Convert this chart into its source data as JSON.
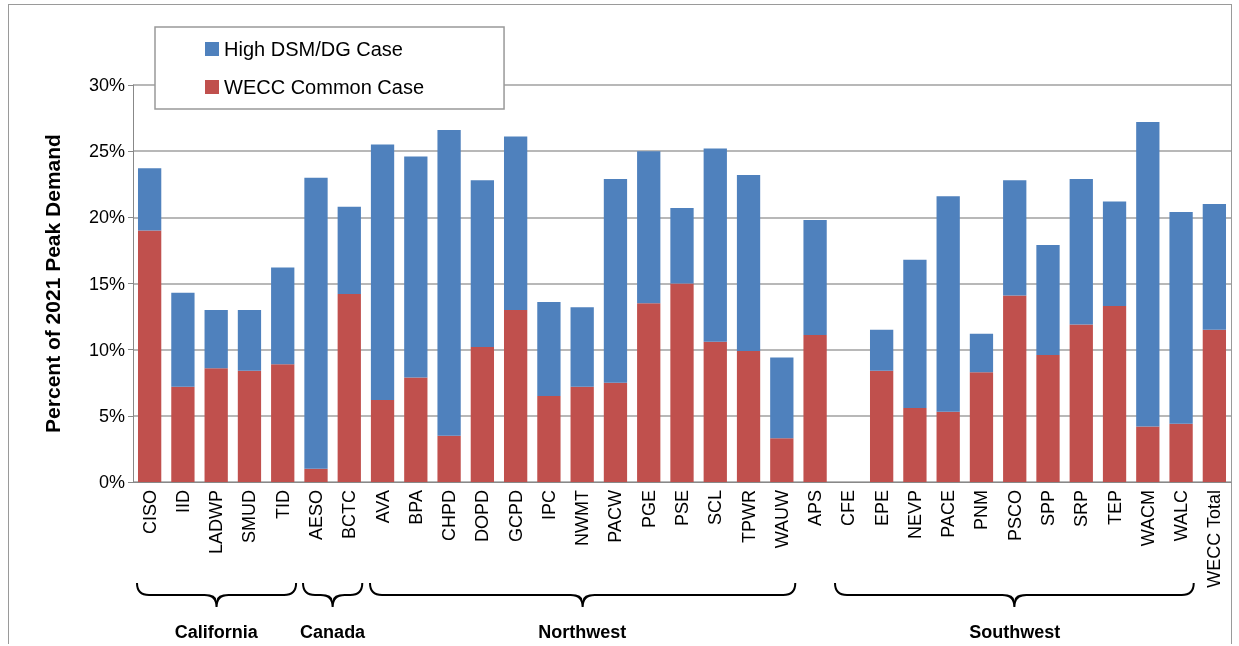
{
  "chart_data": {
    "type": "bar",
    "stacked": true,
    "ylabel": "Percent of 2021 Peak Demand",
    "categories": [
      "CISO",
      "IID",
      "LADWP",
      "SMUD",
      "TID",
      "AESO",
      "BCTC",
      "AVA",
      "BPA",
      "CHPD",
      "DOPD",
      "GCPD",
      "IPC",
      "NWMT",
      "PACW",
      "PGE",
      "PSE",
      "SCL",
      "TPWR",
      "WAUW",
      "APS",
      "CFE",
      "EPE",
      "NEVP",
      "PACE",
      "PNM",
      "PSCO",
      "SPP",
      "SRP",
      "TEP",
      "WACM",
      "WALC",
      "WECC Total"
    ],
    "series": [
      {
        "name": "WECC Common Case",
        "color": "#c0504d",
        "values": [
          19.0,
          7.2,
          8.6,
          8.4,
          8.9,
          1.0,
          14.2,
          6.2,
          7.9,
          3.5,
          10.2,
          13.0,
          6.5,
          7.2,
          7.5,
          13.5,
          15.0,
          10.6,
          9.9,
          3.3,
          11.1,
          null,
          8.4,
          5.6,
          5.3,
          8.3,
          14.1,
          9.6,
          11.9,
          13.3,
          4.2,
          4.4,
          11.5
        ]
      },
      {
        "name": "High DSM/DG Case",
        "color": "#4f81bd",
        "values": [
          4.7,
          7.1,
          4.4,
          4.6,
          7.3,
          22.0,
          6.6,
          19.3,
          16.7,
          23.1,
          12.6,
          13.1,
          7.1,
          6.0,
          15.4,
          11.5,
          5.7,
          14.6,
          13.3,
          6.1,
          8.7,
          null,
          3.1,
          11.2,
          16.3,
          2.9,
          8.7,
          8.3,
          11.0,
          7.9,
          23.0,
          16.0,
          9.5
        ]
      }
    ],
    "ylim": [
      0,
      30
    ],
    "yticks": [
      {
        "value": 0,
        "label": "0%"
      },
      {
        "value": 5,
        "label": "5%"
      },
      {
        "value": 10,
        "label": "10%"
      },
      {
        "value": 15,
        "label": "15%"
      },
      {
        "value": 20,
        "label": "20%"
      },
      {
        "value": 25,
        "label": "25%"
      },
      {
        "value": 30,
        "label": "30%"
      }
    ],
    "grid": "y",
    "legend": "top left",
    "annotations": [
      "California",
      "Canada",
      "Northwest",
      "Southwest"
    ]
  }
}
